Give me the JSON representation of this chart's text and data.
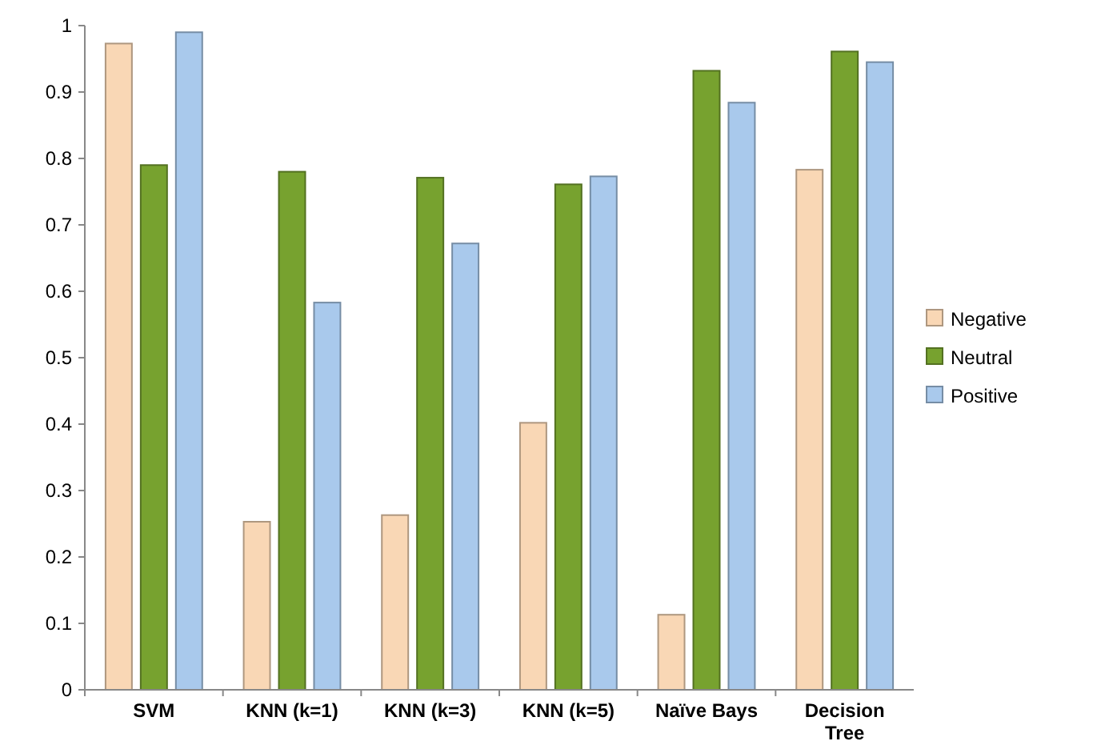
{
  "chart_data": {
    "type": "bar",
    "categories": [
      "SVM",
      "KNN (k=1)",
      "KNN (k=3)",
      "KNN (k=5)",
      "Naïve Bays",
      "Decision Tree"
    ],
    "series": [
      {
        "name": "Negative",
        "color": "#f9d7b5",
        "values": [
          0.973,
          0.253,
          0.263,
          0.402,
          0.113,
          0.783
        ]
      },
      {
        "name": "Neutral",
        "color": "#77a22f",
        "values": [
          0.79,
          0.78,
          0.771,
          0.761,
          0.932,
          0.961
        ]
      },
      {
        "name": "Positive",
        "color": "#a9c9ec",
        "values": [
          0.99,
          0.583,
          0.672,
          0.773,
          0.884,
          0.945
        ]
      }
    ],
    "ylim": [
      0,
      1
    ],
    "yticks": [
      0,
      0.1,
      0.2,
      0.3,
      0.4,
      0.5,
      0.6,
      0.7,
      0.8,
      0.9,
      1
    ],
    "grid": false,
    "legend": "right"
  }
}
